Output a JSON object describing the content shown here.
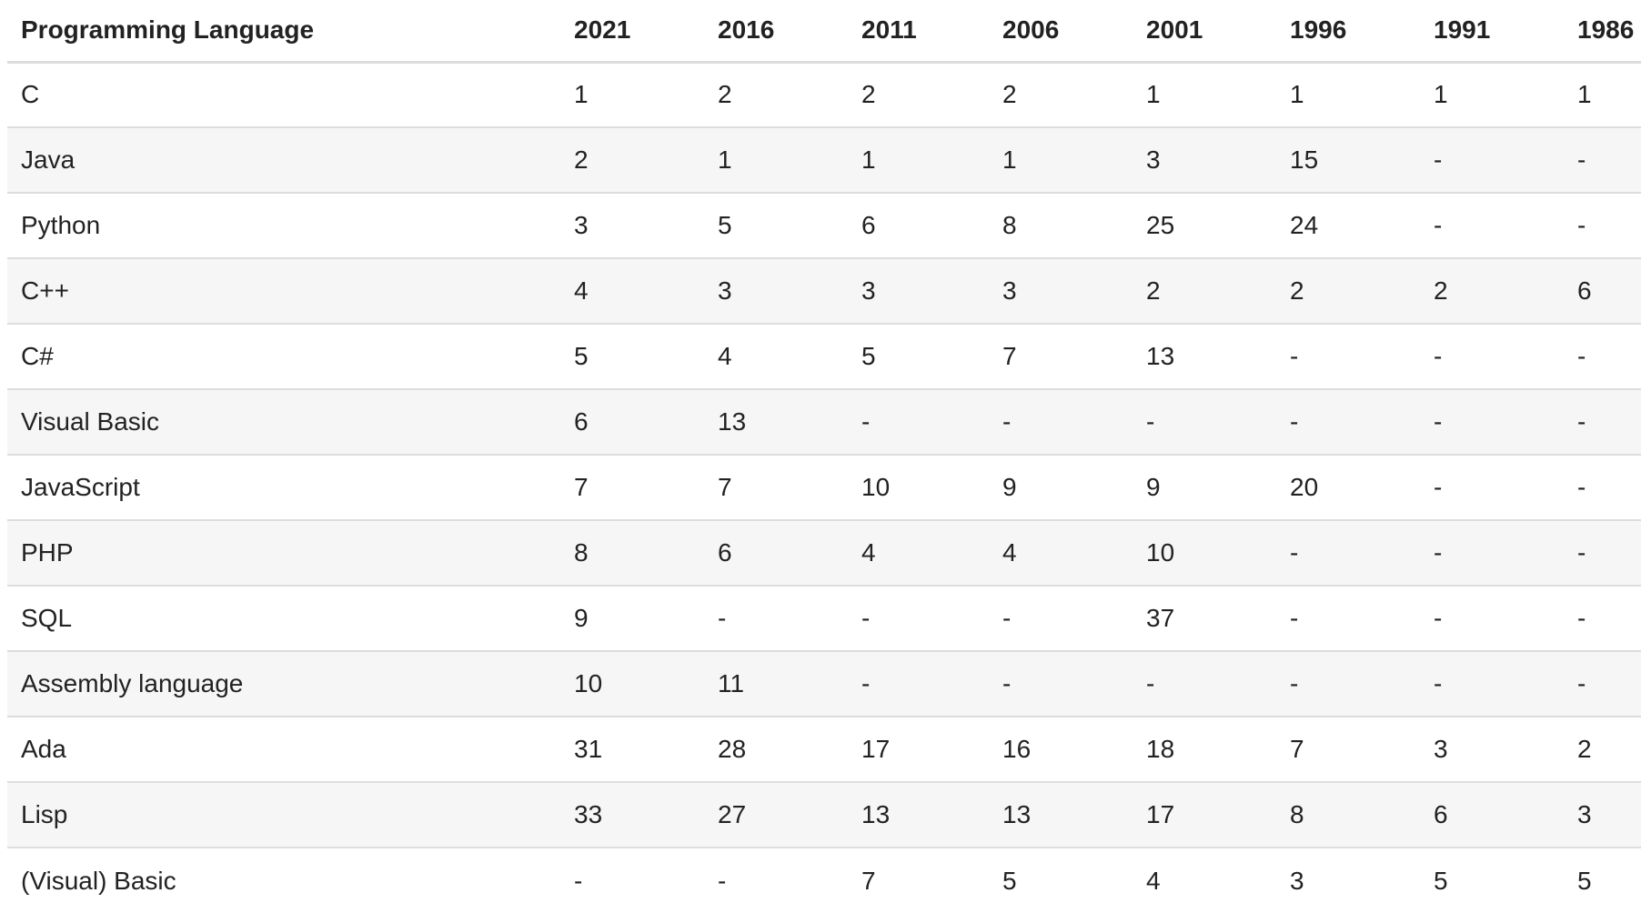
{
  "table": {
    "headers": [
      "Programming Language",
      "2021",
      "2016",
      "2011",
      "2006",
      "2001",
      "1996",
      "1991",
      "1986"
    ],
    "rows": [
      [
        "C",
        "1",
        "2",
        "2",
        "2",
        "1",
        "1",
        "1",
        "1"
      ],
      [
        "Java",
        "2",
        "1",
        "1",
        "1",
        "3",
        "15",
        "-",
        "-"
      ],
      [
        "Python",
        "3",
        "5",
        "6",
        "8",
        "25",
        "24",
        "-",
        "-"
      ],
      [
        "C++",
        "4",
        "3",
        "3",
        "3",
        "2",
        "2",
        "2",
        "6"
      ],
      [
        "C#",
        "5",
        "4",
        "5",
        "7",
        "13",
        "-",
        "-",
        "-"
      ],
      [
        "Visual Basic",
        "6",
        "13",
        "-",
        "-",
        "-",
        "-",
        "-",
        "-"
      ],
      [
        "JavaScript",
        "7",
        "7",
        "10",
        "9",
        "9",
        "20",
        "-",
        "-"
      ],
      [
        "PHP",
        "8",
        "6",
        "4",
        "4",
        "10",
        "-",
        "-",
        "-"
      ],
      [
        "SQL",
        "9",
        "-",
        "-",
        "-",
        "37",
        "-",
        "-",
        "-"
      ],
      [
        "Assembly language",
        "10",
        "11",
        "-",
        "-",
        "-",
        "-",
        "-",
        "-"
      ],
      [
        "Ada",
        "31",
        "28",
        "17",
        "16",
        "18",
        "7",
        "3",
        "2"
      ],
      [
        "Lisp",
        "33",
        "27",
        "13",
        "13",
        "17",
        "8",
        "6",
        "3"
      ],
      [
        "(Visual) Basic",
        "-",
        "-",
        "7",
        "5",
        "4",
        "3",
        "5",
        "5"
      ]
    ]
  }
}
